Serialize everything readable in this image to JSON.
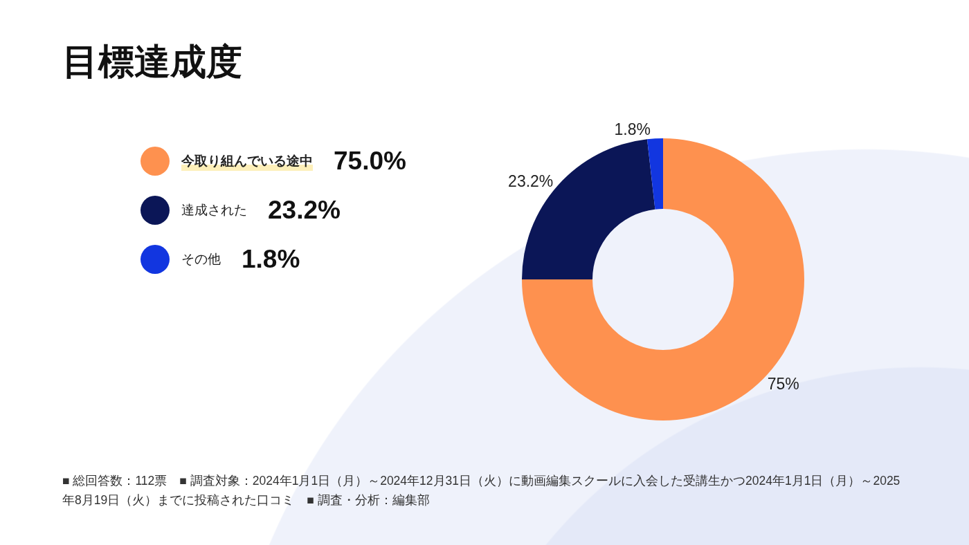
{
  "chart_data": {
    "type": "donut",
    "title": "目標達成度",
    "categories": [
      "今取り組んでいる途中",
      "達成された",
      "その他"
    ],
    "values": [
      75,
      23.2,
      1.8
    ],
    "colors": [
      "#fe914f",
      "#0b1657",
      "#1236e0"
    ],
    "value_labels": [
      "75%",
      "23.2%",
      "1.8%"
    ],
    "legend": "left",
    "annotations": [
      "75.0%",
      "23.2%",
      "1.8%",
      "■ 総回答数：112票　■ 調査対象：2024年1月1日（月）～2024年12月31日（火）に動画編集スクールに入会した受講生かつ2024年1月1日（月）～2025年8月19日（火）までに投稿された口コミ　■ 調査・分析：編集部"
    ]
  }
}
